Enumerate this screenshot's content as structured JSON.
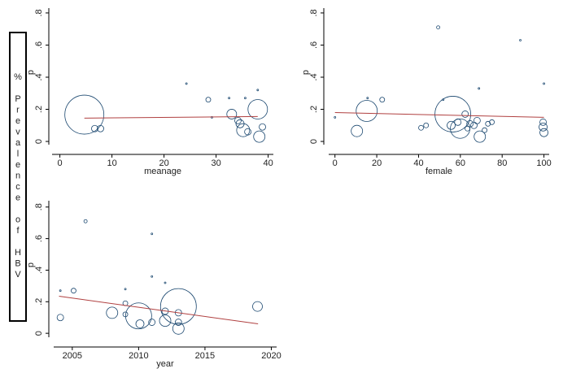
{
  "side_label": "% Prevalence of HBV",
  "chart_data": [
    {
      "type": "scatter",
      "xlabel": "meanage",
      "ylabel": "p",
      "xlim": [
        -1.5,
        41
      ],
      "ylim": [
        -0.02,
        0.83
      ],
      "xticks": [
        0,
        10,
        20,
        30,
        40
      ],
      "yticks": [
        0,
        {
          "value": 0.2,
          "label": ".2"
        },
        {
          "value": 0.4,
          "label": ".4"
        },
        {
          "value": 0.6,
          "label": ".6"
        },
        {
          "value": 0.8,
          "label": ".8"
        }
      ],
      "color": "#1a476f",
      "x": [
        4.7,
        6.7,
        7.8,
        24.3,
        28.5,
        29.2,
        32.5,
        33,
        34.2,
        34.6,
        35.2,
        35.6,
        36.1,
        38,
        38,
        38.3,
        38.9
      ],
      "values": [
        0.167,
        0.08,
        0.08,
        0.36,
        0.26,
        0.15,
        0.27,
        0.17,
        0.13,
        0.11,
        0.07,
        0.27,
        0.06,
        0.32,
        0.2,
        0.03,
        0.09
      ],
      "sizes": [
        24,
        4,
        4,
        1,
        3,
        1,
        1,
        6,
        4,
        5,
        8,
        1,
        4,
        1,
        12,
        7,
        4
      ],
      "fit": {
        "x": [
          4.7,
          38
        ],
        "y": [
          0.145,
          0.155
        ],
        "color": "#b04040"
      }
    },
    {
      "type": "scatter",
      "xlabel": "female",
      "ylabel": "p",
      "xlim": [
        -3,
        102.5
      ],
      "ylim": [
        -0.02,
        0.83
      ],
      "xticks": [
        0,
        20,
        40,
        60,
        80,
        100
      ],
      "yticks": [
        0,
        {
          "value": 0.2,
          "label": ".2"
        },
        {
          "value": 0.4,
          "label": ".4"
        },
        {
          "value": 0.6,
          "label": ".6"
        },
        {
          "value": 0.8,
          "label": ".8"
        }
      ],
      "color": "#1a476f",
      "x": [
        0,
        10.5,
        15.2,
        15.6,
        22.6,
        41.2,
        43.6,
        49.4,
        51.8,
        56.4,
        55.6,
        58.8,
        59.9,
        62.3,
        63.4,
        64.6,
        66.5,
        68,
        68.9,
        69.3,
        71.6,
        73.2,
        75.1,
        88.7,
        100,
        99.6,
        99.6,
        100
      ],
      "values": [
        0.15,
        0.065,
        0.19,
        0.27,
        0.26,
        0.085,
        0.1,
        0.71,
        0.26,
        0.17,
        0.1,
        0.12,
        0.08,
        0.17,
        0.08,
        0.11,
        0.1,
        0.13,
        0.33,
        0.03,
        0.07,
        0.11,
        0.12,
        0.63,
        0.36,
        0.12,
        0.09,
        0.055
      ],
      "sizes": [
        1,
        7,
        13,
        1,
        3,
        3,
        3,
        2,
        1,
        22,
        5,
        4,
        12,
        4,
        3,
        4,
        4,
        4,
        1,
        7,
        3,
        3,
        3,
        1,
        1,
        4,
        5,
        5
      ],
      "fit": {
        "x": [
          0,
          100
        ],
        "y": [
          0.18,
          0.15
        ],
        "color": "#b04040"
      }
    },
    {
      "type": "scatter",
      "xlabel": "year",
      "ylabel": "p",
      "xlim": [
        2003.6,
        2020.4
      ],
      "ylim": [
        -0.025,
        0.84
      ],
      "xticks": [
        2005,
        2010,
        2015,
        2020
      ],
      "yticks": [
        0,
        {
          "value": 0.2,
          "label": ".2"
        },
        {
          "value": 0.4,
          "label": ".4"
        },
        {
          "value": 0.6,
          "label": ".6"
        },
        {
          "value": 0.8,
          "label": ".8"
        }
      ],
      "color": "#1a476f",
      "x": [
        2004.1,
        2004.1,
        2005.1,
        2006,
        2008,
        2009,
        2009,
        2009,
        2010,
        2010.1,
        2011,
        2011,
        2011,
        2012,
        2012,
        2012,
        2013,
        2013,
        2013,
        2013,
        2018.96
      ],
      "values": [
        0.27,
        0.1,
        0.27,
        0.71,
        0.13,
        0.28,
        0.19,
        0.12,
        0.11,
        0.06,
        0.63,
        0.36,
        0.07,
        0.32,
        0.14,
        0.08,
        0.17,
        0.13,
        0.07,
        0.03,
        0.17
      ],
      "sizes": [
        1,
        4,
        3,
        2,
        7,
        1,
        3,
        3,
        16,
        5,
        1,
        1,
        4,
        1,
        4,
        7,
        22,
        4,
        4,
        7,
        6
      ],
      "fit": {
        "x": [
          2004,
          2019
        ],
        "y": [
          0.235,
          0.06
        ],
        "color": "#b04040"
      }
    }
  ]
}
